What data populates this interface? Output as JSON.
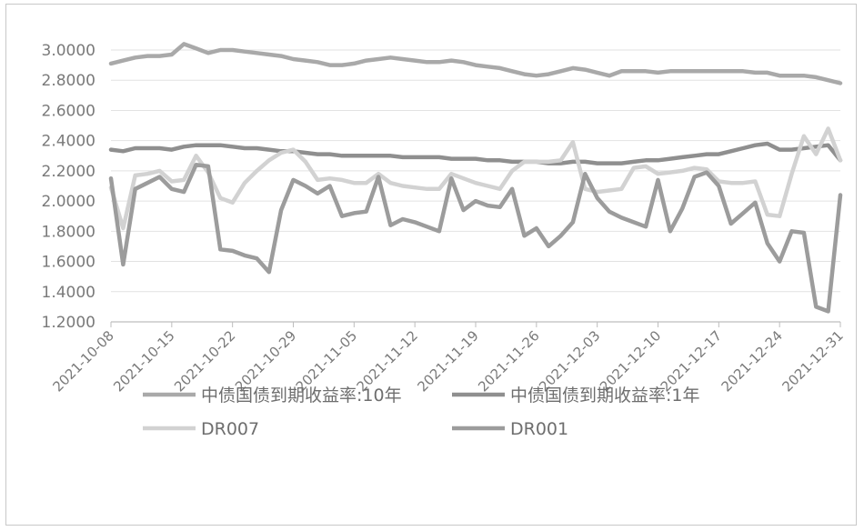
{
  "chart_data": {
    "type": "line",
    "title": "",
    "xlabel": "",
    "ylabel": "",
    "ylim": [
      1.2,
      3.0
    ],
    "yticks": [
      "3.0000",
      "2.8000",
      "2.6000",
      "2.4000",
      "2.2000",
      "2.0000",
      "1.8000",
      "1.6000",
      "1.4000",
      "1.2000"
    ],
    "xtick_labels": [
      "2021-10-08",
      "2021-10-15",
      "2021-10-22",
      "2021-10-29",
      "2021-11-05",
      "2021-11-12",
      "2021-11-19",
      "2021-11-26",
      "2021-12-03",
      "2021-12-10",
      "2021-12-17",
      "2021-12-24",
      "2021-12-31"
    ],
    "grid": true,
    "legend_position": "bottom",
    "x": [
      "2021-10-08",
      "2021-10-11",
      "2021-10-12",
      "2021-10-13",
      "2021-10-14",
      "2021-10-15",
      "2021-10-18",
      "2021-10-19",
      "2021-10-20",
      "2021-10-21",
      "2021-10-22",
      "2021-10-25",
      "2021-10-26",
      "2021-10-27",
      "2021-10-28",
      "2021-10-29",
      "2021-11-01",
      "2021-11-02",
      "2021-11-03",
      "2021-11-04",
      "2021-11-05",
      "2021-11-08",
      "2021-11-09",
      "2021-11-10",
      "2021-11-11",
      "2021-11-12",
      "2021-11-15",
      "2021-11-16",
      "2021-11-17",
      "2021-11-18",
      "2021-11-19",
      "2021-11-22",
      "2021-11-23",
      "2021-11-24",
      "2021-11-25",
      "2021-11-26",
      "2021-11-29",
      "2021-11-30",
      "2021-12-01",
      "2021-12-02",
      "2021-12-03",
      "2021-12-06",
      "2021-12-07",
      "2021-12-08",
      "2021-12-09",
      "2021-12-10",
      "2021-12-13",
      "2021-12-14",
      "2021-12-15",
      "2021-12-16",
      "2021-12-17",
      "2021-12-20",
      "2021-12-21",
      "2021-12-22",
      "2021-12-23",
      "2021-12-24",
      "2021-12-27",
      "2021-12-28",
      "2021-12-29",
      "2021-12-30",
      "2021-12-31"
    ],
    "series": [
      {
        "name": "中债国债到期收益率:10年",
        "color": "#a9a9a9",
        "values": [
          2.91,
          2.93,
          2.95,
          2.96,
          2.96,
          2.97,
          3.04,
          3.01,
          2.98,
          3.0,
          3.0,
          2.99,
          2.98,
          2.97,
          2.96,
          2.94,
          2.93,
          2.92,
          2.9,
          2.9,
          2.91,
          2.93,
          2.94,
          2.95,
          2.94,
          2.93,
          2.92,
          2.92,
          2.93,
          2.92,
          2.9,
          2.89,
          2.88,
          2.86,
          2.84,
          2.83,
          2.84,
          2.86,
          2.88,
          2.87,
          2.85,
          2.83,
          2.86,
          2.86,
          2.86,
          2.85,
          2.86,
          2.86,
          2.86,
          2.86,
          2.86,
          2.86,
          2.86,
          2.85,
          2.85,
          2.83,
          2.83,
          2.83,
          2.82,
          2.8,
          2.78
        ]
      },
      {
        "name": "中债国债到期收益率:1年",
        "color": "#8f8f8f",
        "values": [
          2.34,
          2.33,
          2.35,
          2.35,
          2.35,
          2.34,
          2.36,
          2.37,
          2.37,
          2.37,
          2.36,
          2.35,
          2.35,
          2.34,
          2.33,
          2.33,
          2.32,
          2.31,
          2.31,
          2.3,
          2.3,
          2.3,
          2.3,
          2.3,
          2.29,
          2.29,
          2.29,
          2.29,
          2.28,
          2.28,
          2.28,
          2.27,
          2.27,
          2.26,
          2.26,
          2.26,
          2.25,
          2.25,
          2.26,
          2.26,
          2.25,
          2.25,
          2.25,
          2.26,
          2.27,
          2.27,
          2.28,
          2.29,
          2.3,
          2.31,
          2.31,
          2.33,
          2.35,
          2.37,
          2.38,
          2.34,
          2.34,
          2.35,
          2.36,
          2.37,
          2.27
        ]
      },
      {
        "name": "DR007",
        "color": "#d2d2d2",
        "values": [
          2.09,
          1.82,
          2.17,
          2.18,
          2.2,
          2.13,
          2.14,
          2.3,
          2.19,
          2.02,
          1.99,
          2.12,
          2.2,
          2.27,
          2.32,
          2.34,
          2.26,
          2.14,
          2.15,
          2.14,
          2.12,
          2.12,
          2.18,
          2.12,
          2.1,
          2.09,
          2.08,
          2.08,
          2.18,
          2.15,
          2.12,
          2.1,
          2.08,
          2.2,
          2.26,
          2.26,
          2.26,
          2.27,
          2.39,
          2.08,
          2.06,
          2.07,
          2.08,
          2.22,
          2.23,
          2.18,
          2.19,
          2.2,
          2.22,
          2.21,
          2.13,
          2.12,
          2.12,
          2.13,
          1.91,
          1.9,
          2.18,
          2.43,
          2.31,
          2.48,
          2.27
        ]
      },
      {
        "name": "DR001",
        "color": "#9c9c9c",
        "values": [
          2.15,
          1.58,
          2.08,
          2.12,
          2.16,
          2.08,
          2.06,
          2.24,
          2.23,
          1.68,
          1.67,
          1.64,
          1.62,
          1.53,
          1.94,
          2.14,
          2.1,
          2.05,
          2.1,
          1.9,
          1.92,
          1.93,
          2.16,
          1.84,
          1.88,
          1.86,
          1.83,
          1.8,
          2.15,
          1.94,
          2.0,
          1.97,
          1.96,
          2.08,
          1.77,
          1.82,
          1.7,
          1.77,
          1.86,
          2.18,
          2.02,
          1.93,
          1.89,
          1.86,
          1.83,
          2.14,
          1.8,
          1.95,
          2.16,
          2.19,
          2.1,
          1.85,
          1.92,
          1.99,
          1.72,
          1.6,
          1.8,
          1.79,
          1.3,
          1.27,
          2.04
        ]
      }
    ]
  }
}
